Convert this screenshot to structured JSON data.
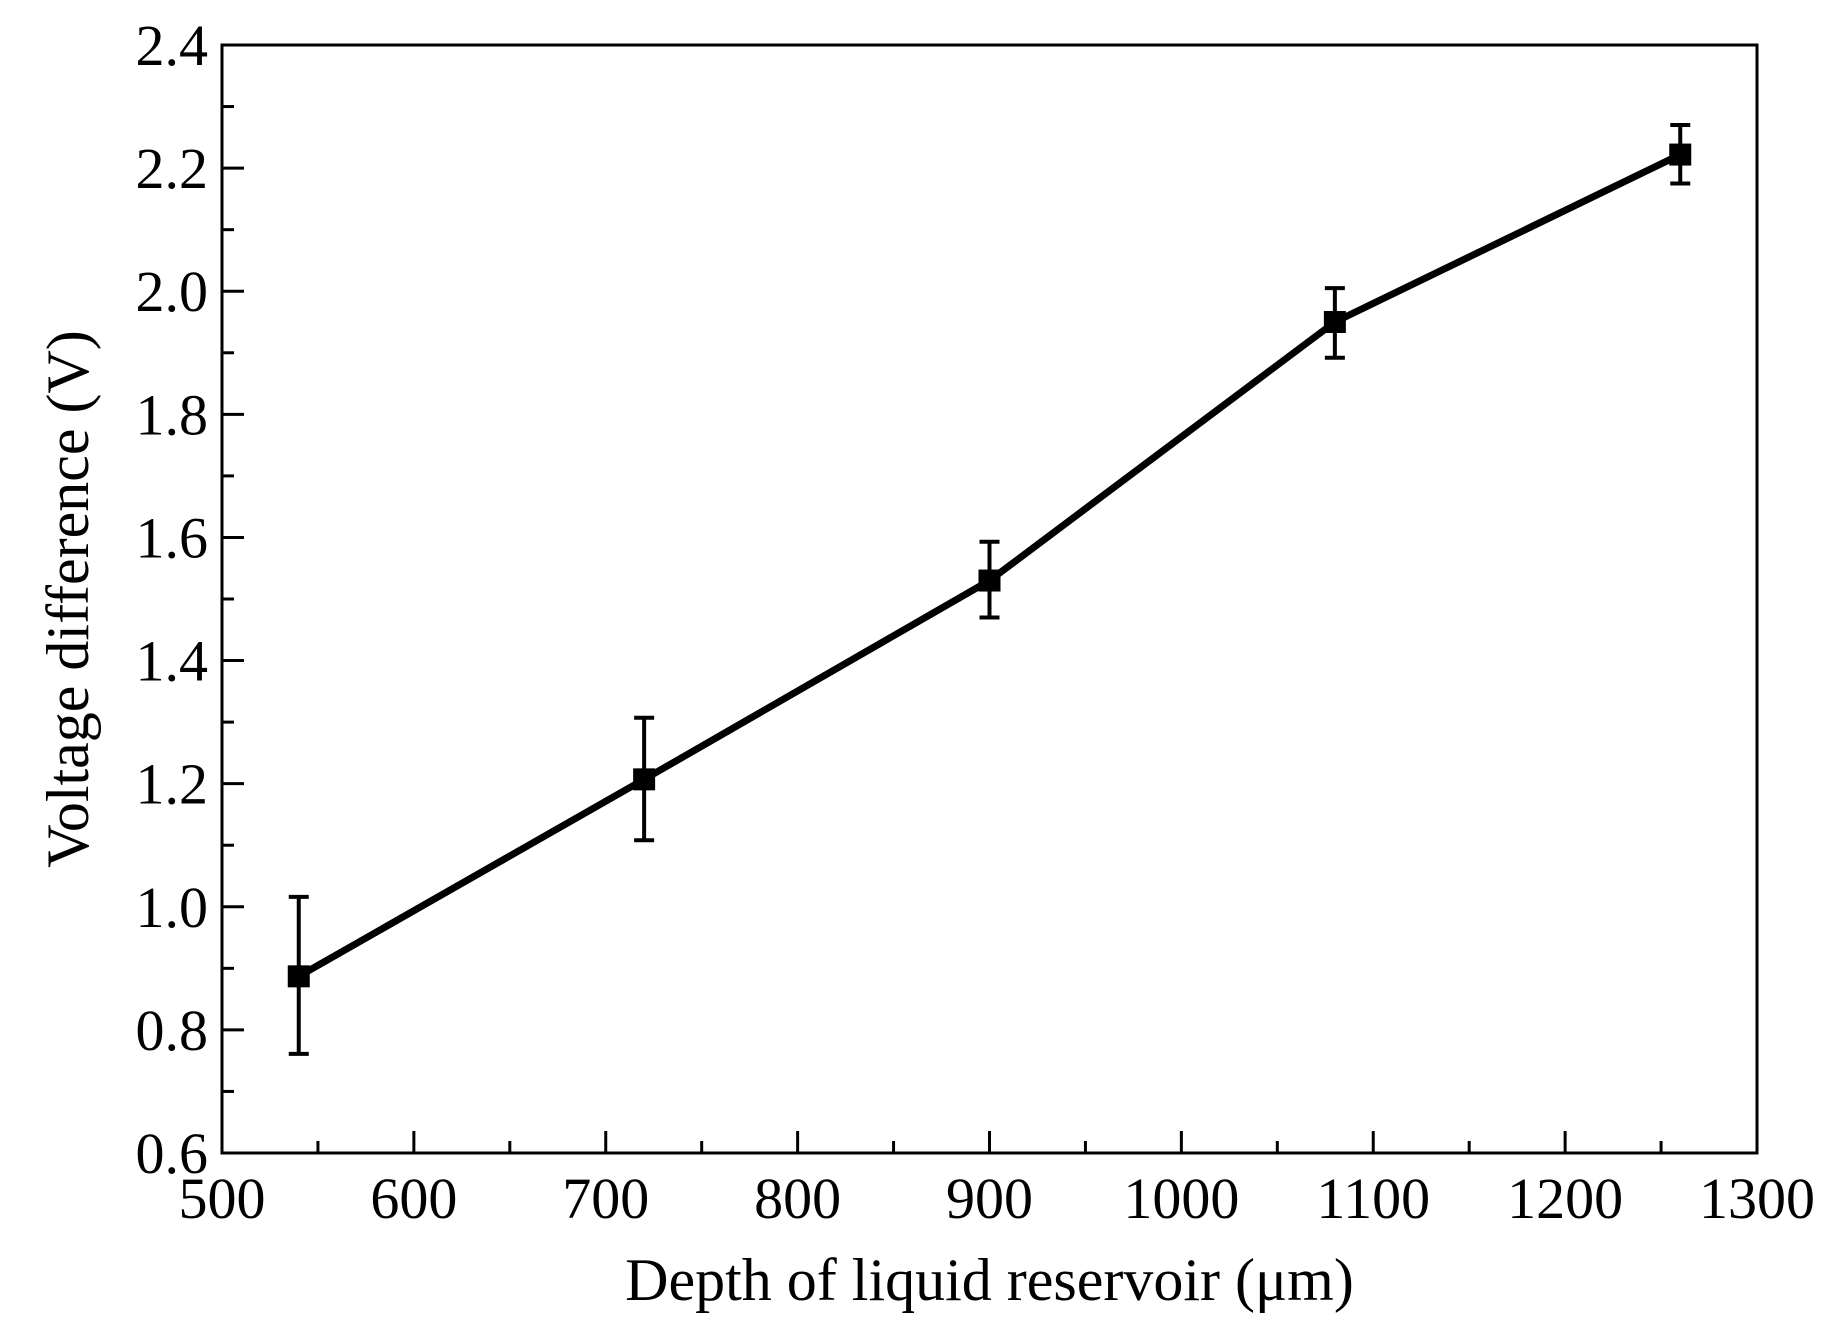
{
  "chart_data": {
    "type": "line",
    "title": "",
    "xlabel": "Depth of liquid reservoir (μm)",
    "ylabel": "Voltage difference (V)",
    "xlim": [
      500,
      1300
    ],
    "ylim": [
      0.6,
      2.4
    ],
    "x_ticks": [
      500,
      600,
      700,
      800,
      900,
      1000,
      1100,
      1200,
      1300
    ],
    "x_tick_labels": [
      "500",
      "600",
      "700",
      "800",
      "900",
      "1000",
      "1100",
      "1200",
      "1300"
    ],
    "y_ticks": [
      0.6,
      0.8,
      1.0,
      1.2,
      1.4,
      1.6,
      1.8,
      2.0,
      2.2,
      2.4
    ],
    "y_tick_labels": [
      "0.6",
      "0.8",
      "1.0",
      "1.2",
      "1.4",
      "1.6",
      "1.8",
      "2.0",
      "2.2",
      "2.4"
    ],
    "grid": false,
    "legend": "none",
    "series": [
      {
        "name": "Voltage difference",
        "marker": "square",
        "color": "#000000",
        "x": [
          540,
          720,
          900,
          1080,
          1260
        ],
        "y": [
          0.887,
          1.207,
          1.53,
          1.95,
          2.222
        ],
        "err_low": [
          0.761,
          1.108,
          1.47,
          1.892,
          2.175
        ],
        "err_high": [
          1.016,
          1.307,
          1.593,
          2.005,
          2.27
        ]
      }
    ]
  }
}
